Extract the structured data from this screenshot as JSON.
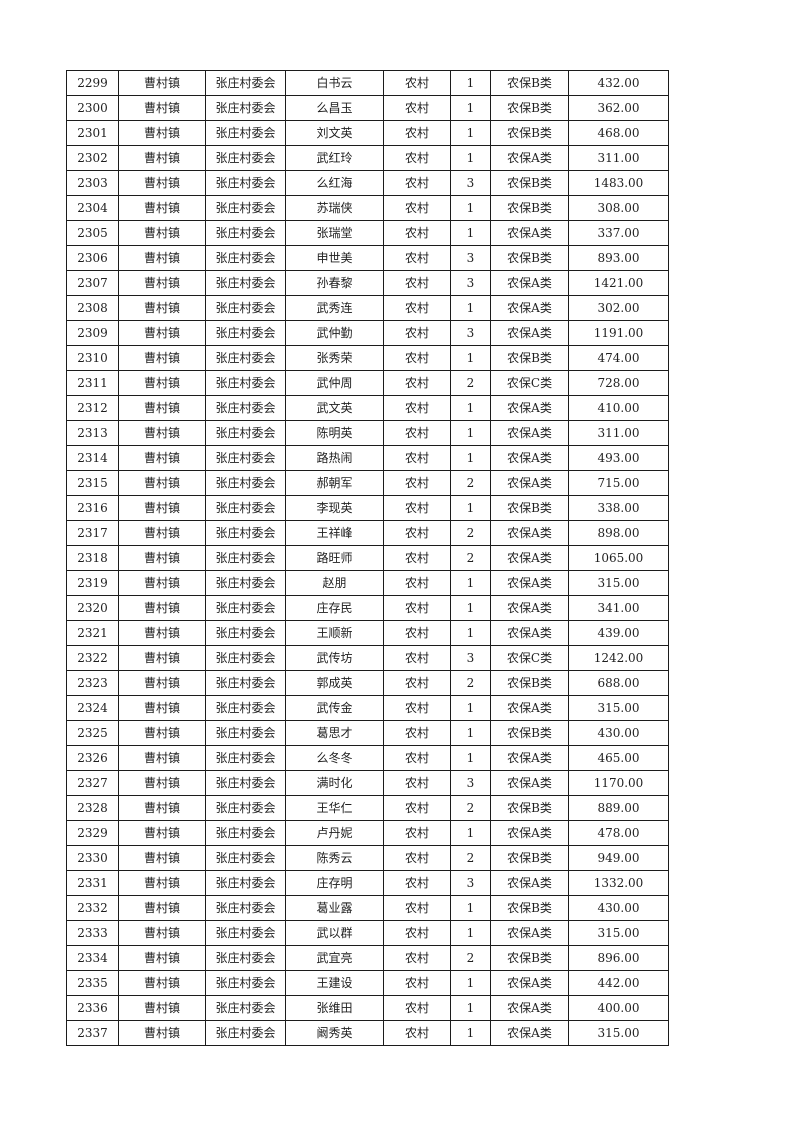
{
  "page": {
    "background": "#ffffff",
    "border_color": "#1c1c1c",
    "text_color": "#1f1f1f"
  },
  "table": {
    "rows": [
      [
        "2299",
        "曹村镇",
        "张庄村委会",
        "白书云",
        "农村",
        "1",
        "农保B类",
        "432.00"
      ],
      [
        "2300",
        "曹村镇",
        "张庄村委会",
        "么昌玉",
        "农村",
        "1",
        "农保B类",
        "362.00"
      ],
      [
        "2301",
        "曹村镇",
        "张庄村委会",
        "刘文英",
        "农村",
        "1",
        "农保B类",
        "468.00"
      ],
      [
        "2302",
        "曹村镇",
        "张庄村委会",
        "武红玲",
        "农村",
        "1",
        "农保A类",
        "311.00"
      ],
      [
        "2303",
        "曹村镇",
        "张庄村委会",
        "么红海",
        "农村",
        "3",
        "农保B类",
        "1483.00"
      ],
      [
        "2304",
        "曹村镇",
        "张庄村委会",
        "苏瑞侠",
        "农村",
        "1",
        "农保B类",
        "308.00"
      ],
      [
        "2305",
        "曹村镇",
        "张庄村委会",
        "张瑞堂",
        "农村",
        "1",
        "农保A类",
        "337.00"
      ],
      [
        "2306",
        "曹村镇",
        "张庄村委会",
        "申世美",
        "农村",
        "3",
        "农保B类",
        "893.00"
      ],
      [
        "2307",
        "曹村镇",
        "张庄村委会",
        "孙春黎",
        "农村",
        "3",
        "农保A类",
        "1421.00"
      ],
      [
        "2308",
        "曹村镇",
        "张庄村委会",
        "武秀连",
        "农村",
        "1",
        "农保A类",
        "302.00"
      ],
      [
        "2309",
        "曹村镇",
        "张庄村委会",
        "武仲勤",
        "农村",
        "3",
        "农保A类",
        "1191.00"
      ],
      [
        "2310",
        "曹村镇",
        "张庄村委会",
        "张秀荣",
        "农村",
        "1",
        "农保B类",
        "474.00"
      ],
      [
        "2311",
        "曹村镇",
        "张庄村委会",
        "武仲周",
        "农村",
        "2",
        "农保C类",
        "728.00"
      ],
      [
        "2312",
        "曹村镇",
        "张庄村委会",
        "武文英",
        "农村",
        "1",
        "农保A类",
        "410.00"
      ],
      [
        "2313",
        "曹村镇",
        "张庄村委会",
        "陈明英",
        "农村",
        "1",
        "农保A类",
        "311.00"
      ],
      [
        "2314",
        "曹村镇",
        "张庄村委会",
        "路热闹",
        "农村",
        "1",
        "农保A类",
        "493.00"
      ],
      [
        "2315",
        "曹村镇",
        "张庄村委会",
        "郝朝军",
        "农村",
        "2",
        "农保A类",
        "715.00"
      ],
      [
        "2316",
        "曹村镇",
        "张庄村委会",
        "李现英",
        "农村",
        "1",
        "农保B类",
        "338.00"
      ],
      [
        "2317",
        "曹村镇",
        "张庄村委会",
        "王祥峰",
        "农村",
        "2",
        "农保A类",
        "898.00"
      ],
      [
        "2318",
        "曹村镇",
        "张庄村委会",
        "路旺师",
        "农村",
        "2",
        "农保A类",
        "1065.00"
      ],
      [
        "2319",
        "曹村镇",
        "张庄村委会",
        "赵朋",
        "农村",
        "1",
        "农保A类",
        "315.00"
      ],
      [
        "2320",
        "曹村镇",
        "张庄村委会",
        "庄存民",
        "农村",
        "1",
        "农保A类",
        "341.00"
      ],
      [
        "2321",
        "曹村镇",
        "张庄村委会",
        "王顺新",
        "农村",
        "1",
        "农保A类",
        "439.00"
      ],
      [
        "2322",
        "曹村镇",
        "张庄村委会",
        "武传坊",
        "农村",
        "3",
        "农保C类",
        "1242.00"
      ],
      [
        "2323",
        "曹村镇",
        "张庄村委会",
        "郭成英",
        "农村",
        "2",
        "农保B类",
        "688.00"
      ],
      [
        "2324",
        "曹村镇",
        "张庄村委会",
        "武传金",
        "农村",
        "1",
        "农保A类",
        "315.00"
      ],
      [
        "2325",
        "曹村镇",
        "张庄村委会",
        "葛思才",
        "农村",
        "1",
        "农保B类",
        "430.00"
      ],
      [
        "2326",
        "曹村镇",
        "张庄村委会",
        "么冬冬",
        "农村",
        "1",
        "农保A类",
        "465.00"
      ],
      [
        "2327",
        "曹村镇",
        "张庄村委会",
        "满时化",
        "农村",
        "3",
        "农保A类",
        "1170.00"
      ],
      [
        "2328",
        "曹村镇",
        "张庄村委会",
        "王华仁",
        "农村",
        "2",
        "农保B类",
        "889.00"
      ],
      [
        "2329",
        "曹村镇",
        "张庄村委会",
        "卢丹妮",
        "农村",
        "1",
        "农保A类",
        "478.00"
      ],
      [
        "2330",
        "曹村镇",
        "张庄村委会",
        "陈秀云",
        "农村",
        "2",
        "农保B类",
        "949.00"
      ],
      [
        "2331",
        "曹村镇",
        "张庄村委会",
        "庄存明",
        "农村",
        "3",
        "农保A类",
        "1332.00"
      ],
      [
        "2332",
        "曹村镇",
        "张庄村委会",
        "葛业露",
        "农村",
        "1",
        "农保B类",
        "430.00"
      ],
      [
        "2333",
        "曹村镇",
        "张庄村委会",
        "武以群",
        "农村",
        "1",
        "农保A类",
        "315.00"
      ],
      [
        "2334",
        "曹村镇",
        "张庄村委会",
        "武宜亮",
        "农村",
        "2",
        "农保B类",
        "896.00"
      ],
      [
        "2335",
        "曹村镇",
        "张庄村委会",
        "王建设",
        "农村",
        "1",
        "农保A类",
        "442.00"
      ],
      [
        "2336",
        "曹村镇",
        "张庄村委会",
        "张维田",
        "农村",
        "1",
        "农保A类",
        "400.00"
      ],
      [
        "2337",
        "曹村镇",
        "张庄村委会",
        "阚秀英",
        "农村",
        "1",
        "农保A类",
        "315.00"
      ]
    ]
  }
}
